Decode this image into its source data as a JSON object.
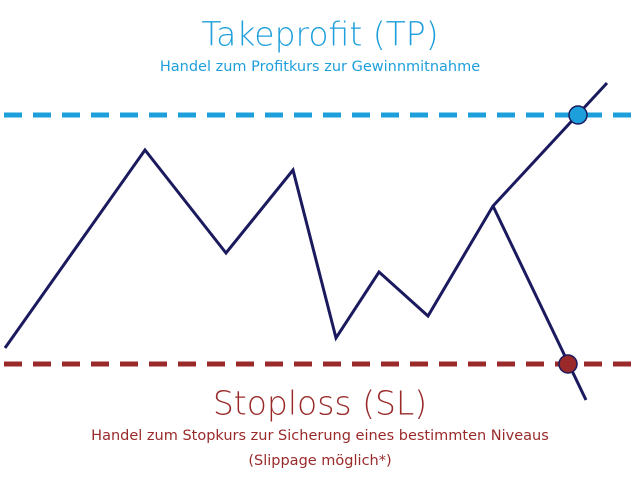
{
  "takeprofit": {
    "title": "Takeprofit (TP)",
    "description": "Handel zum Profitkurs zur Gewinnmitnahme"
  },
  "stoploss": {
    "title": "Stoploss (SL)",
    "description": "Handel zum Stopkurs zur Sicherung eines bestimmten Niveaus",
    "note": "(Slippage möglich*)"
  }
}
